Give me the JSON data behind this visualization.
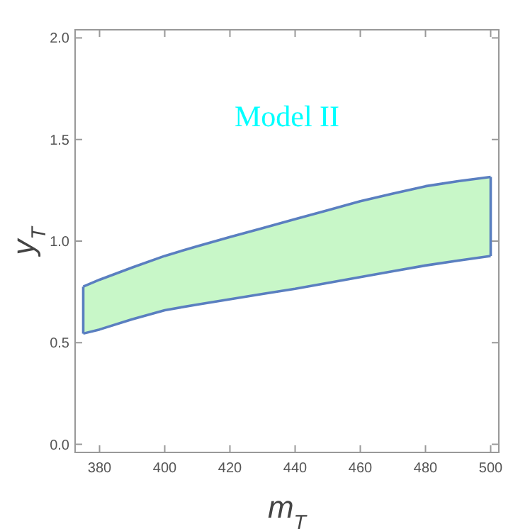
{
  "chart_data": {
    "type": "line",
    "xlabel": "m$_{T}$",
    "ylabel": "y$_{T}$",
    "annotations": [
      "Model II"
    ],
    "xlim": [
      372.5,
      502.5
    ],
    "ylim": [
      -0.04,
      2.04
    ],
    "xticks": [
      380,
      400,
      420,
      440,
      460,
      480,
      500
    ],
    "yticks": [
      {
        "value": 0,
        "label": "0.0"
      },
      {
        "value": 0.5,
        "label": "0.5"
      },
      {
        "value": 1,
        "label": "1.0"
      },
      {
        "value": 1.5,
        "label": "1.5"
      },
      {
        "value": 2,
        "label": "2.0"
      }
    ],
    "x": [
      375,
      380,
      390,
      400,
      410,
      420,
      430,
      440,
      450,
      460,
      470,
      480,
      490,
      500
    ],
    "series": [
      {
        "color": "#5a7fc0",
        "values": [
          0.776,
          0.81,
          0.87,
          0.927,
          0.975,
          1.02,
          1.064,
          1.108,
          1.152,
          1.196,
          1.234,
          1.27,
          1.295,
          1.316
        ]
      },
      {
        "color": "#5a7fc0",
        "values": [
          0.545,
          0.565,
          0.615,
          0.66,
          0.688,
          0.714,
          0.74,
          0.765,
          0.794,
          0.823,
          0.852,
          0.88,
          0.904,
          0.927
        ]
      }
    ]
  }
}
